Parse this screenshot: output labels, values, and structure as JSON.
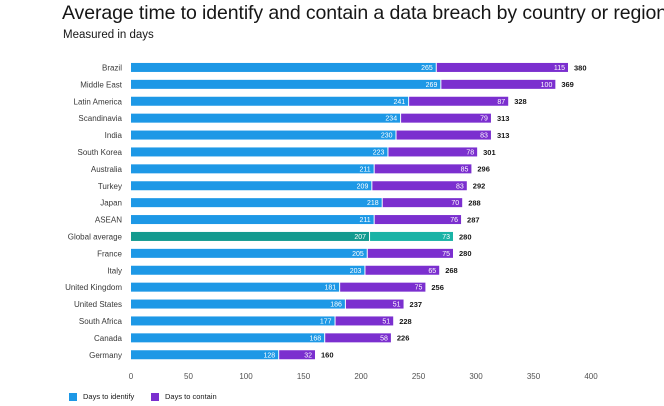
{
  "chart_data": {
    "type": "bar",
    "orientation": "horizontal",
    "stacked": true,
    "title": "Average time to identify and contain a data breach by country or region",
    "subtitle": "Measured in days",
    "categories": [
      "Brazil",
      "Middle East",
      "Latin America",
      "Scandinavia",
      "India",
      "South Korea",
      "Australia",
      "Turkey",
      "Japan",
      "ASEAN",
      "Global average",
      "France",
      "Italy",
      "United Kingdom",
      "United States",
      "South Africa",
      "Canada",
      "Germany"
    ],
    "series": [
      {
        "name": "Days to identify",
        "color": "#1d98e6",
        "values": [
          265,
          269,
          241,
          234,
          230,
          223,
          211,
          209,
          218,
          211,
          207,
          205,
          203,
          181,
          186,
          177,
          168,
          128
        ]
      },
      {
        "name": "Days to contain",
        "color": "#7b2fcf",
        "values": [
          115,
          100,
          87,
          79,
          83,
          78,
          85,
          83,
          70,
          76,
          73,
          75,
          65,
          75,
          51,
          51,
          58,
          32
        ]
      }
    ],
    "totals": [
      380,
      369,
      328,
      313,
      313,
      301,
      296,
      292,
      288,
      287,
      280,
      280,
      268,
      256,
      237,
      228,
      226,
      160
    ],
    "highlight": {
      "category": "Global average",
      "colors": [
        "#139a8f",
        "#1ab3a6"
      ]
    },
    "xlim": [
      0,
      400
    ],
    "xticks": [
      0,
      50,
      100,
      150,
      200,
      250,
      300,
      350,
      400
    ],
    "legend_position": "bottom-left",
    "grid": false
  }
}
